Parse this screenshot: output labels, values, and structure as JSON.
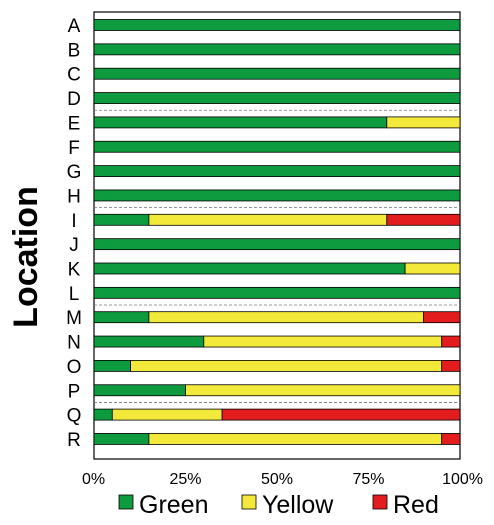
{
  "chart_data": {
    "type": "bar",
    "orientation": "horizontal",
    "stacked": true,
    "title": "",
    "xlabel": "",
    "ylabel": "Location",
    "xlim": [
      0,
      100
    ],
    "x_ticks": [
      "0%",
      "25%",
      "50%",
      "75%",
      "100%"
    ],
    "categories": [
      "A",
      "B",
      "C",
      "D",
      "E",
      "F",
      "G",
      "H",
      "I",
      "J",
      "K",
      "L",
      "M",
      "N",
      "O",
      "P",
      "Q",
      "R"
    ],
    "series": [
      {
        "name": "Green",
        "color": "#0e9a3e",
        "values": [
          100,
          100,
          100,
          100,
          80,
          100,
          100,
          100,
          15,
          100,
          85,
          100,
          15,
          30,
          10,
          25,
          5,
          15
        ]
      },
      {
        "name": "Yellow",
        "color": "#f2e93a",
        "values": [
          0,
          0,
          0,
          0,
          20,
          0,
          0,
          0,
          65,
          0,
          15,
          0,
          75,
          65,
          85,
          75,
          30,
          80
        ]
      },
      {
        "name": "Red",
        "color": "#e31d1d",
        "values": [
          0,
          0,
          0,
          0,
          0,
          0,
          0,
          0,
          20,
          0,
          0,
          0,
          10,
          5,
          5,
          0,
          65,
          5
        ]
      }
    ],
    "separators_after": [
      "D",
      "H",
      "L",
      "P"
    ],
    "legend_position": "bottom",
    "grid": false
  }
}
